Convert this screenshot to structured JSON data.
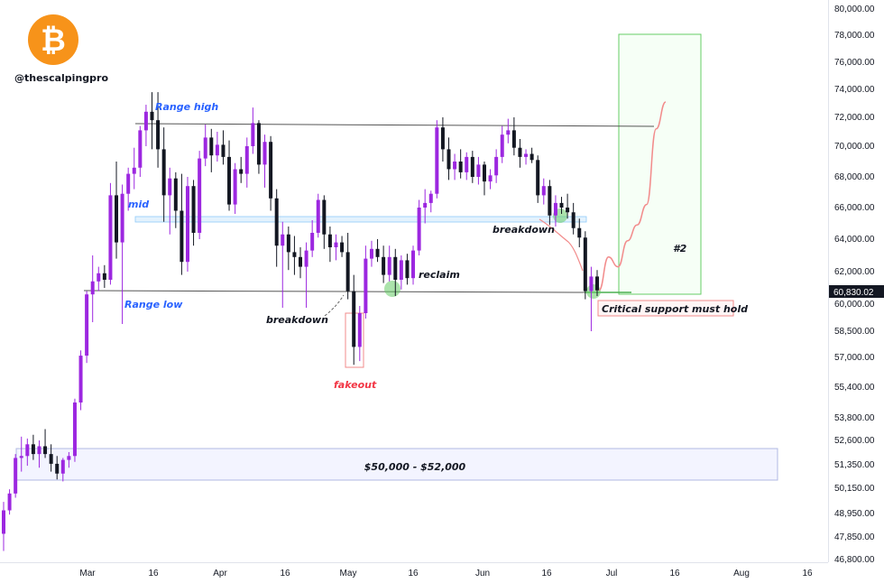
{
  "handle": "@thescalpingpro",
  "logo_icon": "bitcoin-logo-icon",
  "colors": {
    "bull": "#9c27e0",
    "bear": "#131722",
    "range_line": "#555555",
    "mid_box": "#bbdefb",
    "target_box": "#66cc66",
    "projection": "#f28b8b",
    "zone_box": "#5c6bc0",
    "price_tag": "#131722"
  },
  "chart_data": {
    "type": "candlestick",
    "title": "",
    "x_ticks": [
      "Mar",
      "16",
      "Apr",
      "16",
      "May",
      "16",
      "Jun",
      "16",
      "Jul",
      "16",
      "Aug",
      "16"
    ],
    "y_ticks": [
      "80,000.00",
      "78,000.00",
      "76,000.00",
      "74,000.00",
      "72,000.00",
      "70,000.00",
      "68,000.00",
      "66,000.00",
      "64,000.00",
      "62,000.00",
      "60,000.00",
      "58,500.00",
      "57,000.00",
      "55,400.00",
      "53,800.00",
      "52,600.00",
      "51,350.00",
      "50,150.00",
      "48,950.00",
      "47,850.00",
      "46,800.00"
    ],
    "scale": "log",
    "ylim": [
      46800,
      80000
    ],
    "current_price": "60,830.02",
    "levels": {
      "range_high": 71500,
      "range_low": 60750,
      "mid": 65200
    },
    "annotations": {
      "range_high": "Range high",
      "range_low": "Range low",
      "mid": "mid",
      "breakdown_1": "breakdown",
      "fakeout": "fakeout",
      "reclaim": "reclaim",
      "breakdown_2": "breakdown",
      "critical": "Critical support must hold",
      "zone": "$50,000 - $52,000",
      "scenario": "#2"
    },
    "candles": [
      [
        48000,
        49500,
        47200,
        49100
      ],
      [
        49100,
        50100,
        48900,
        49900
      ],
      [
        49900,
        51900,
        49700,
        51700
      ],
      [
        51700,
        52800,
        51000,
        51800
      ],
      [
        51800,
        52700,
        51300,
        52400
      ],
      [
        52400,
        52900,
        51600,
        51900
      ],
      [
        51900,
        52600,
        51200,
        52300
      ],
      [
        52300,
        53200,
        51700,
        51900
      ],
      [
        51900,
        52400,
        51000,
        51400
      ],
      [
        51400,
        51800,
        50600,
        50900
      ],
      [
        50900,
        51700,
        50500,
        51600
      ],
      [
        51600,
        52000,
        51200,
        51800
      ],
      [
        51800,
        54800,
        51500,
        54600
      ],
      [
        54600,
        57400,
        54200,
        57100
      ],
      [
        57100,
        60800,
        56700,
        60600
      ],
      [
        60600,
        63000,
        59000,
        61400
      ],
      [
        61400,
        62300,
        60800,
        61900
      ],
      [
        61900,
        62400,
        61000,
        61500
      ],
      [
        61500,
        67600,
        61200,
        66800
      ],
      [
        66800,
        69000,
        62800,
        63800
      ],
      [
        63800,
        67500,
        58900,
        66900
      ],
      [
        66900,
        68600,
        65800,
        68200
      ],
      [
        68200,
        69900,
        67200,
        68600
      ],
      [
        68600,
        71400,
        68000,
        71100
      ],
      [
        71100,
        72900,
        70000,
        72400
      ],
      [
        72400,
        73800,
        69800,
        71800
      ],
      [
        71800,
        73800,
        68600,
        69800
      ],
      [
        69800,
        71300,
        65100,
        66800
      ],
      [
        66800,
        68600,
        64300,
        67900
      ],
      [
        67900,
        68300,
        64700,
        65800
      ],
      [
        65800,
        68200,
        61800,
        62600
      ],
      [
        62600,
        68000,
        62000,
        67400
      ],
      [
        67400,
        67800,
        63600,
        64400
      ],
      [
        64400,
        69700,
        64000,
        69200
      ],
      [
        69200,
        71500,
        68700,
        70600
      ],
      [
        70600,
        71200,
        68300,
        69400
      ],
      [
        69400,
        71000,
        69000,
        70100
      ],
      [
        70100,
        71100,
        68800,
        69300
      ],
      [
        69300,
        70400,
        65800,
        66200
      ],
      [
        66200,
        68900,
        65600,
        68500
      ],
      [
        68500,
        69300,
        67600,
        68200
      ],
      [
        68200,
        70600,
        67300,
        70000
      ],
      [
        70000,
        72700,
        69500,
        71600
      ],
      [
        71600,
        71800,
        68200,
        68800
      ],
      [
        68800,
        70800,
        67300,
        70300
      ],
      [
        70300,
        70700,
        65800,
        66600
      ],
      [
        66600,
        67200,
        62300,
        63600
      ],
      [
        63600,
        65100,
        59800,
        64300
      ],
      [
        64300,
        64800,
        62100,
        63200
      ],
      [
        63200,
        64200,
        61800,
        62900
      ],
      [
        62900,
        63500,
        61600,
        62300
      ],
      [
        62300,
        63800,
        59800,
        63300
      ],
      [
        63300,
        65200,
        62900,
        64400
      ],
      [
        64400,
        66900,
        64100,
        66500
      ],
      [
        66500,
        66800,
        63400,
        64300
      ],
      [
        64300,
        64800,
        62600,
        63500
      ],
      [
        63500,
        64300,
        62700,
        63800
      ],
      [
        63800,
        64200,
        62900,
        63200
      ],
      [
        63200,
        64400,
        60300,
        60800
      ],
      [
        60800,
        61800,
        56600,
        57600
      ],
      [
        57600,
        59900,
        56800,
        59500
      ],
      [
        59500,
        63600,
        59200,
        62800
      ],
      [
        62800,
        63900,
        62300,
        63400
      ],
      [
        63400,
        64000,
        62600,
        62900
      ],
      [
        62900,
        63600,
        61300,
        61800
      ],
      [
        61800,
        63600,
        61400,
        62900
      ],
      [
        62900,
        63400,
        60500,
        61500
      ],
      [
        61500,
        63000,
        60900,
        62700
      ],
      [
        62700,
        63100,
        61200,
        61600
      ],
      [
        61600,
        63600,
        61200,
        63300
      ],
      [
        63300,
        66500,
        63000,
        66000
      ],
      [
        66000,
        67200,
        65000,
        66300
      ],
      [
        66300,
        67100,
        65700,
        66900
      ],
      [
        66900,
        71800,
        66600,
        71300
      ],
      [
        71300,
        72000,
        69000,
        69800
      ],
      [
        69800,
        70600,
        67800,
        68500
      ],
      [
        68500,
        69500,
        67800,
        69000
      ],
      [
        69000,
        69800,
        67900,
        68300
      ],
      [
        68300,
        69600,
        67800,
        69300
      ],
      [
        69300,
        69700,
        67600,
        68000
      ],
      [
        68000,
        69300,
        67500,
        68800
      ],
      [
        68800,
        69000,
        66800,
        67700
      ],
      [
        67700,
        68500,
        67200,
        68100
      ],
      [
        68100,
        69800,
        67600,
        69300
      ],
      [
        69300,
        71400,
        68900,
        70800
      ],
      [
        70800,
        71900,
        70200,
        71100
      ],
      [
        71100,
        72000,
        69400,
        69900
      ],
      [
        69900,
        70500,
        68600,
        69300
      ],
      [
        69300,
        69800,
        68800,
        69500
      ],
      [
        69500,
        69900,
        68900,
        69100
      ],
      [
        69100,
        69400,
        66300,
        66800
      ],
      [
        66800,
        67900,
        66200,
        67400
      ],
      [
        67400,
        67800,
        64900,
        65500
      ],
      [
        65500,
        66800,
        64800,
        66300
      ],
      [
        66300,
        66700,
        65600,
        66000
      ],
      [
        66000,
        66900,
        65300,
        65700
      ],
      [
        65700,
        66300,
        64300,
        64700
      ],
      [
        64700,
        65300,
        63500,
        64100
      ],
      [
        64100,
        64500,
        60300,
        60800
      ],
      [
        60800,
        62300,
        58500,
        61700
      ],
      [
        61700,
        62100,
        60500,
        60850
      ]
    ],
    "projection": [
      [
        60900,
        60850
      ],
      [
        62600,
        62900
      ],
      [
        61200,
        62300
      ],
      [
        63400,
        63900
      ],
      [
        64600,
        64900
      ],
      [
        65800,
        66200
      ],
      [
        68200,
        71200
      ],
      [
        72900,
        73100
      ]
    ],
    "projection_label": "#2"
  }
}
